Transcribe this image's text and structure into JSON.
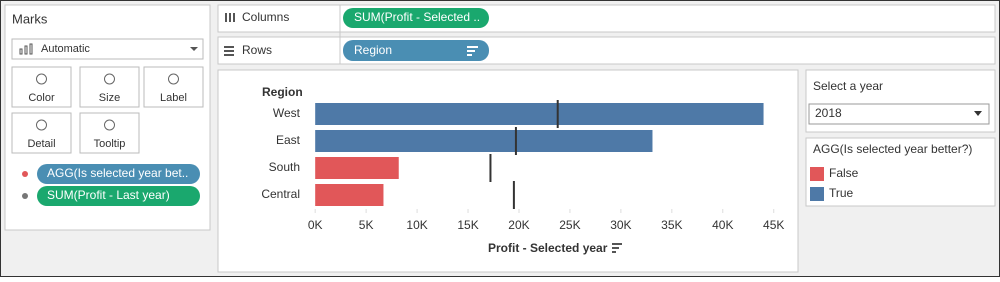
{
  "ui": {
    "marks": {
      "title": "Marks",
      "mark_type": "Automatic",
      "buttons": [
        "Color",
        "Size",
        "Label",
        "Detail",
        "Tooltip"
      ],
      "pills": [
        "AGG(Is selected year bet..",
        "SUM(Profit - Last year)"
      ]
    },
    "columns": {
      "label": "Columns",
      "pill": "SUM(Profit - Selected .."
    },
    "rows": {
      "label": "Rows",
      "pill": "Region"
    },
    "filter": {
      "title": "Select a year",
      "value": "2018"
    }
  },
  "chart_data": {
    "type": "bar",
    "orientation": "horizontal",
    "y_header": "Region",
    "x_label": "Profit - Selected year",
    "categories": [
      "West",
      "East",
      "South",
      "Central"
    ],
    "values": [
      44000,
      33100,
      8200,
      6700
    ],
    "colors": [
      "#4e79a7",
      "#4e79a7",
      "#e15759",
      "#e15759"
    ],
    "reference_lines": {
      "values": [
        23800,
        19700,
        17200,
        19500
      ],
      "color": "#333333"
    },
    "xlim": [
      -1000,
      46400
    ],
    "xticks": [
      {
        "value": 0,
        "label": "0K"
      },
      {
        "value": 5000,
        "label": "5K"
      },
      {
        "value": 10000,
        "label": "10K"
      },
      {
        "value": 15000,
        "label": "15K"
      },
      {
        "value": 20000,
        "label": "20K"
      },
      {
        "value": 25000,
        "label": "25K"
      },
      {
        "value": 30000,
        "label": "30K"
      },
      {
        "value": 35000,
        "label": "35K"
      },
      {
        "value": 40000,
        "label": "40K"
      },
      {
        "value": 45000,
        "label": "45K"
      }
    ],
    "legend": {
      "title": "AGG(Is selected year better?)",
      "items": [
        {
          "name": "False",
          "color": "#e15759"
        },
        {
          "name": "True",
          "color": "#4e79a7"
        }
      ]
    }
  }
}
